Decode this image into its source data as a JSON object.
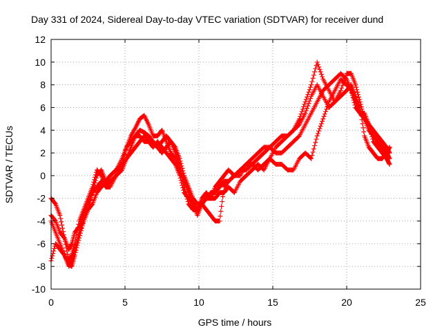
{
  "chart_data": {
    "type": "scatter",
    "title": "Day 331 of 2024, Sidereal Day-to-day VTEC variation (SDTVAR) for receiver dund",
    "xlabel": "GPS time / hours",
    "ylabel": "SDTVAR / TECUs",
    "xlim": [
      0,
      25
    ],
    "ylim": [
      -10,
      12
    ],
    "xticks": [
      0,
      5,
      10,
      15,
      20,
      25
    ],
    "yticks": [
      -10,
      -8,
      -6,
      -4,
      -2,
      0,
      2,
      4,
      6,
      8,
      10,
      12
    ],
    "grid": true,
    "marker": "plus",
    "color": "#ff0000",
    "series": [
      {
        "x": [
          0.0,
          0.3,
          0.6,
          0.9,
          1.2,
          1.4,
          1.6,
          1.9,
          2.2,
          2.5,
          2.8,
          3.1,
          3.4,
          3.7,
          4.0,
          4.4,
          4.8,
          5.1,
          5.4,
          5.7,
          6.0,
          6.3,
          6.6,
          6.9,
          7.2,
          7.5,
          7.8,
          8.1,
          8.4,
          8.7,
          9.0,
          9.3,
          9.6,
          9.9,
          10.2,
          10.5,
          10.8,
          11.1,
          11.4,
          11.7,
          12.0,
          12.4,
          12.8,
          13.2,
          13.6,
          14.0,
          14.4,
          14.8,
          15.2,
          15.6,
          16.0,
          16.4,
          16.8,
          17.2,
          17.6,
          18.0,
          18.4,
          18.8,
          19.2,
          19.6,
          20.0,
          20.3,
          20.6,
          20.9,
          21.2,
          21.5,
          21.8,
          22.1,
          22.4,
          22.7,
          22.9
        ],
        "y": [
          -7.5,
          -6.0,
          -6.5,
          -7.0,
          -7.8,
          -8.0,
          -7.0,
          -5.5,
          -4.0,
          -3.0,
          -1.5,
          0.0,
          0.5,
          -0.5,
          0.0,
          0.5,
          1.5,
          2.5,
          3.5,
          4.2,
          5.0,
          5.3,
          4.5,
          3.5,
          3.5,
          4.0,
          3.0,
          2.0,
          1.5,
          0.5,
          -0.5,
          -1.5,
          -2.5,
          -3.0,
          -2.0,
          -1.5,
          -2.0,
          -1.0,
          -0.5,
          0.0,
          0.5,
          0.0,
          0.5,
          1.0,
          1.5,
          2.0,
          2.5,
          2.5,
          3.0,
          3.5,
          3.5,
          4.0,
          5.0,
          6.5,
          8.0,
          10.0,
          8.5,
          7.5,
          6.5,
          7.5,
          9.0,
          9.0,
          8.0,
          6.5,
          5.0,
          4.5,
          4.0,
          3.5,
          3.0,
          2.5,
          2.0
        ]
      },
      {
        "x": [
          0.0,
          0.3,
          0.6,
          0.9,
          1.2,
          1.4,
          1.6,
          1.9,
          2.2,
          2.5,
          2.8,
          3.1,
          3.4,
          3.7,
          4.0,
          4.4,
          4.8,
          5.1,
          5.4,
          5.7,
          6.0,
          6.3,
          6.6,
          6.9,
          7.2,
          7.5,
          7.8,
          8.1,
          8.4,
          8.7,
          9.0,
          9.3,
          9.6,
          9.9,
          10.2,
          10.5,
          10.8,
          11.1,
          11.4,
          11.7,
          12.0,
          12.4,
          12.8,
          13.2,
          13.6,
          14.0,
          14.4,
          14.8,
          15.2,
          15.6,
          16.0,
          16.4,
          16.8,
          17.2,
          17.6,
          18.0,
          18.4,
          18.8,
          19.2,
          19.6,
          20.0,
          20.3,
          20.6,
          20.9,
          21.2,
          21.5,
          21.8,
          22.1,
          22.4,
          22.7,
          22.9
        ],
        "y": [
          -3.5,
          -4.0,
          -5.0,
          -5.5,
          -6.5,
          -6.0,
          -5.0,
          -4.5,
          -3.5,
          -2.5,
          -1.5,
          -1.0,
          -0.5,
          -1.0,
          -0.5,
          0.0,
          0.5,
          1.5,
          2.5,
          3.5,
          4.0,
          3.8,
          3.5,
          3.0,
          2.5,
          3.0,
          3.5,
          3.0,
          2.5,
          1.5,
          0.0,
          -1.0,
          -2.0,
          -2.5,
          -2.5,
          -2.0,
          -1.5,
          -1.5,
          -1.0,
          -0.5,
          -0.5,
          0.0,
          0.5,
          0.5,
          1.0,
          1.5,
          2.0,
          2.5,
          2.0,
          2.0,
          2.5,
          3.0,
          3.5,
          4.5,
          5.5,
          6.5,
          7.5,
          8.0,
          8.5,
          9.0,
          8.5,
          7.5,
          6.5,
          5.5,
          5.0,
          4.0,
          3.5,
          3.0,
          2.5,
          2.0,
          1.5
        ]
      },
      {
        "x": [
          0.0,
          0.3,
          0.6,
          0.9,
          1.2,
          1.4,
          1.6,
          1.9,
          2.2,
          2.5,
          2.8,
          3.1,
          3.4,
          3.7,
          4.0,
          4.4,
          4.8,
          5.1,
          5.4,
          5.7,
          6.0,
          6.3,
          6.6,
          6.9,
          7.2,
          7.5,
          7.8,
          8.1,
          8.4,
          8.7,
          9.0,
          9.3,
          9.6,
          9.9,
          10.2,
          10.5,
          10.8,
          11.1,
          11.4,
          11.7,
          12.0,
          12.4,
          12.8,
          13.2,
          13.6,
          14.0,
          14.4,
          14.8,
          15.2,
          15.6,
          16.0,
          16.4,
          16.8,
          17.2,
          17.6,
          18.0,
          18.4,
          18.8,
          19.2,
          19.6,
          20.0,
          20.3,
          20.6,
          20.9,
          21.2,
          21.5,
          21.8,
          22.1,
          22.4,
          22.7,
          22.9
        ],
        "y": [
          -2.0,
          -2.5,
          -3.5,
          -5.5,
          -7.5,
          -7.0,
          -6.0,
          -4.0,
          -3.0,
          -2.0,
          -1.0,
          0.5,
          0.0,
          -1.0,
          -1.0,
          0.0,
          1.0,
          2.5,
          3.0,
          3.5,
          3.5,
          3.0,
          3.0,
          2.5,
          3.0,
          2.5,
          2.0,
          1.5,
          1.0,
          0.0,
          -1.5,
          -2.0,
          -2.5,
          -3.5,
          -2.5,
          -2.0,
          -2.0,
          -2.0,
          -1.5,
          -1.5,
          -1.0,
          -1.5,
          -0.5,
          0.0,
          0.5,
          1.0,
          0.5,
          1.5,
          1.0,
          1.0,
          0.5,
          0.5,
          1.5,
          2.0,
          1.5,
          3.5,
          5.0,
          6.5,
          7.5,
          8.5,
          8.0,
          7.5,
          6.0,
          5.5,
          5.5,
          4.5,
          3.0,
          2.5,
          2.0,
          1.5,
          1.0
        ]
      },
      {
        "x": [
          0.0,
          0.3,
          0.6,
          0.9,
          1.2,
          1.4,
          1.6,
          1.9,
          2.2,
          2.5,
          2.8,
          3.1,
          3.4,
          3.7,
          4.0,
          4.4,
          4.8,
          5.1,
          5.4,
          5.7,
          6.0,
          6.3,
          6.6,
          6.9,
          7.2,
          7.5,
          7.8,
          8.1,
          8.4,
          8.7,
          9.0,
          9.3,
          9.6,
          9.9,
          10.2,
          10.5,
          10.8,
          11.1,
          11.4,
          11.7,
          12.0,
          12.4,
          12.8,
          13.2,
          13.6,
          14.0,
          14.4,
          14.8,
          15.2,
          15.6,
          16.0,
          16.4,
          16.8,
          17.2,
          17.6,
          18.0,
          18.4,
          18.8,
          19.2,
          19.6,
          20.0,
          20.3,
          20.6,
          20.9,
          21.2,
          21.5,
          21.8,
          22.1,
          22.4,
          22.7,
          22.9
        ],
        "y": [
          -4.0,
          -5.0,
          -6.0,
          -7.0,
          -8.0,
          -7.5,
          -6.5,
          -5.0,
          -4.0,
          -3.0,
          -2.5,
          -1.5,
          -1.0,
          -0.5,
          0.0,
          0.5,
          1.0,
          1.5,
          2.0,
          2.5,
          3.0,
          3.5,
          3.2,
          2.8,
          2.5,
          2.0,
          2.5,
          3.0,
          2.0,
          1.0,
          -1.0,
          -2.5,
          -3.0,
          -3.0,
          -2.5,
          -3.0,
          -3.5,
          -4.0,
          -4.0,
          -1.0,
          -0.5,
          0.0,
          0.0,
          1.0,
          1.0,
          0.5,
          1.0,
          1.5,
          2.5,
          3.0,
          3.5,
          4.0,
          4.5,
          5.5,
          7.0,
          8.0,
          7.0,
          6.0,
          6.5,
          7.0,
          7.5,
          8.0,
          7.0,
          6.0,
          3.5,
          2.5,
          2.0,
          1.5,
          1.5,
          2.0,
          2.5
        ]
      }
    ]
  }
}
